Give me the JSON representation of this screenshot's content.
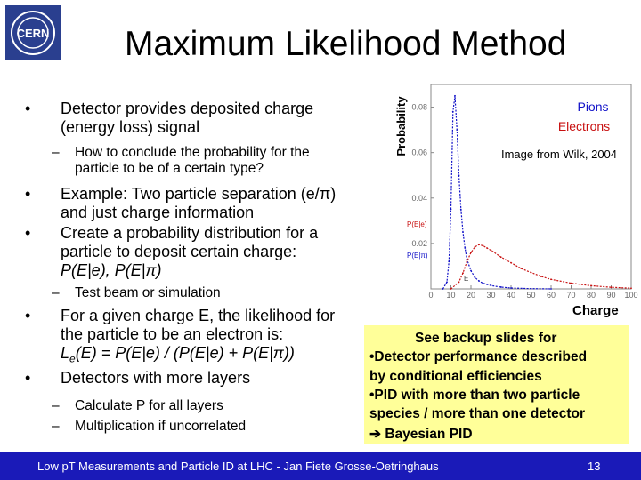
{
  "slide": {
    "title": "Maximum Likelihood Method",
    "logo_text": "CERN",
    "bullets": {
      "b1_l1": "Detector provides deposited charge",
      "b1_l2": "(energy loss) signal",
      "b1_sub1_l1": "How to conclude the probability for the",
      "b1_sub1_l2": "particle to be of a certain type?",
      "b2_l1_pre": "Example: Two particle separation (e/",
      "pi": "π",
      "b2_l1_post": ")",
      "b2_l2": "and just charge information",
      "b3_l1": "Create a probability distribution for a",
      "b3_l2": "particle to deposit certain charge:",
      "b3_l3_a": "P(E|e), P(E|",
      "b3_l3_b": ")",
      "b3_sub1": "Test beam or simulation",
      "b4_l1": "For a given charge E, the likelihood for",
      "b4_l2": "the particle to be an electron is:",
      "b4_l3_L": "L",
      "b4_l3_sub": "e",
      "b4_l3_a": "(E) = P(E|e) / (P(E|e) + P(E|",
      "b4_l3_b": "))",
      "b5_l1": "Detectors with more layers",
      "b5_sub1": "Calculate P for all layers",
      "b5_sub2": "Multiplication if uncorrelated",
      "dot": "•",
      "dash": "–"
    },
    "plot_text": {
      "ylabel": "Probability",
      "legend_pions": "Pions",
      "legend_electrons": "Electrons",
      "credit": "Image from Wilk, 2004",
      "curve_label_pe": "P(E|e)",
      "curve_label_ppi": "P(E|π)",
      "e_marker": "E",
      "xlabel": "Charge"
    },
    "backup_box": {
      "l1": "See backup slides for",
      "l2": "•Detector performance described",
      "l3": "by conditional efficiencies",
      "l4": "•PID with more than two particle",
      "l5": "species / more than one detector",
      "l6": "Bayesian PID",
      "arrow": "➔"
    },
    "footer": {
      "text": "Low pT Measurements and Particle ID at LHC - Jan Fiete Grosse-Oetringhaus",
      "page": "13"
    },
    "colors": {
      "pions": "#1010c8",
      "electrons": "#c81010",
      "footer_bg": "#1a1ab8",
      "box_bg": "#ffff99"
    }
  },
  "chart_data": {
    "type": "line",
    "xlabel": "Charge",
    "ylabel": "Probability",
    "xlim": [
      0,
      100
    ],
    "ylim": [
      0,
      0.09
    ],
    "x_ticks": [
      "0",
      "10",
      "20",
      "30",
      "40",
      "50",
      "60",
      "70",
      "80",
      "90",
      "100"
    ],
    "y_ticks": [
      "0.02",
      "0.04",
      "0.06",
      "0.08"
    ],
    "series": [
      {
        "name": "Pions",
        "color": "#1010c8",
        "x": [
          6,
          8,
          9,
          10,
          11,
          12,
          13,
          14,
          15,
          16,
          17,
          18,
          20,
          22,
          24,
          26,
          28,
          30,
          35,
          40,
          50,
          60
        ],
        "y": [
          0.0,
          0.003,
          0.012,
          0.035,
          0.078,
          0.085,
          0.07,
          0.05,
          0.035,
          0.025,
          0.018,
          0.013,
          0.008,
          0.005,
          0.0035,
          0.0025,
          0.002,
          0.0015,
          0.0008,
          0.0004,
          0.0001,
          0.0
        ]
      },
      {
        "name": "Electrons",
        "color": "#c81010",
        "x": [
          10,
          14,
          16,
          18,
          20,
          22,
          24,
          26,
          28,
          30,
          35,
          40,
          45,
          50,
          55,
          60,
          70,
          80,
          90,
          100
        ],
        "y": [
          0.0,
          0.003,
          0.007,
          0.012,
          0.016,
          0.0185,
          0.0195,
          0.019,
          0.018,
          0.017,
          0.014,
          0.0115,
          0.009,
          0.0072,
          0.0055,
          0.0042,
          0.0025,
          0.0014,
          0.0007,
          0.0003
        ]
      }
    ]
  }
}
